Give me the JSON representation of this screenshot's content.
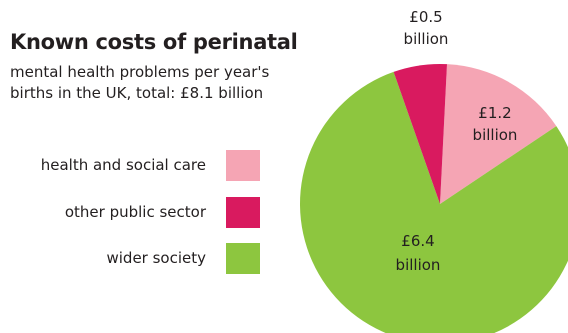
{
  "chart_data": {
    "type": "pie",
    "title": "Known costs of perinatal",
    "subtitle_lines": [
      "mental health problems per year's",
      "births in the UK, total: £8.1 billion"
    ],
    "unit": "£ billion",
    "total": 8.1,
    "slices": [
      {
        "name": "health and social care",
        "value": 1.2,
        "label_value": "£1.2",
        "label_unit": "billion",
        "color": "#f5a5b4"
      },
      {
        "name": "other public sector",
        "value": 0.5,
        "label_value": "£0.5",
        "label_unit": "billion",
        "color": "#d91a5f"
      },
      {
        "name": "wider society",
        "value": 6.4,
        "label_value": "£6.4",
        "label_unit": "billion",
        "color": "#8dc63f"
      }
    ],
    "legend": [
      {
        "label": "health and social care",
        "color": "#f5a5b4"
      },
      {
        "label": "other public sector",
        "color": "#d91a5f"
      },
      {
        "label": "wider society",
        "color": "#8dc63f"
      }
    ],
    "legend_placement": "left"
  }
}
